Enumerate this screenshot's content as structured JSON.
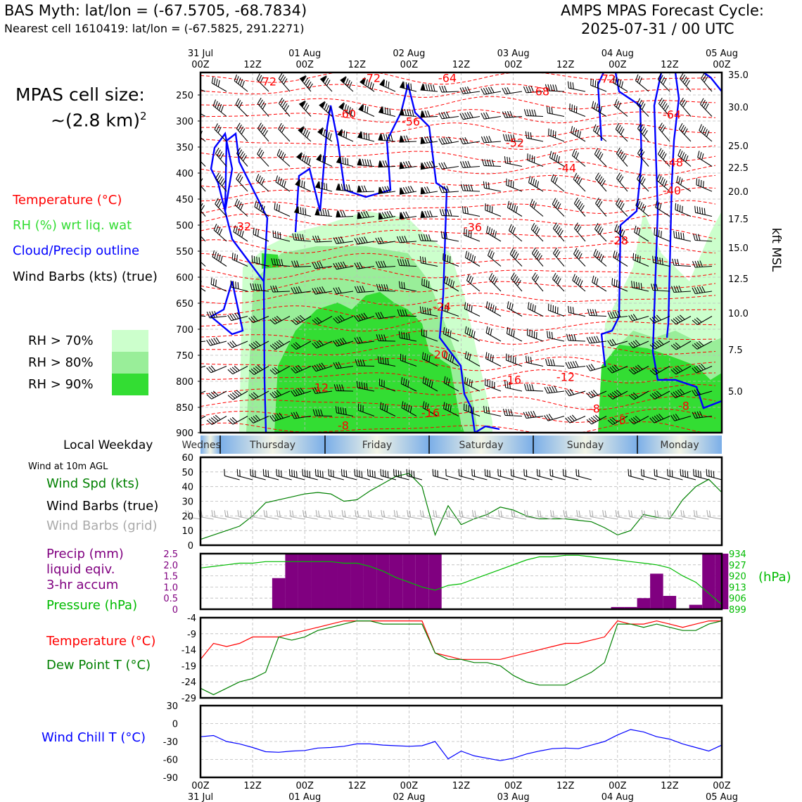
{
  "header": {
    "title_left": "BAS Myth: lat/lon = (-67.5705, -68.7834)",
    "subtitle_left": "Nearest cell 1610419: lat/lon = (-67.5825, 291.2271)",
    "title_right_1": "AMPS MPAS Forecast Cycle:",
    "title_right_2": "2025-07-31 / 00 UTC"
  },
  "cell_size": {
    "line1": "MPAS cell size:",
    "line2": "~(2.8 km)",
    "sup": "2"
  },
  "legend_top": {
    "temperature": "Temperature (°C)",
    "rh": "RH (%) wrt liq. wat",
    "cloud": "Cloud/Precip outline",
    "barbs": "Wind Barbs (kts) (true)",
    "rh70": "RH > 70%",
    "rh80": "RH > 80%",
    "rh90": "RH > 90%"
  },
  "colors": {
    "temp": "#ff0000",
    "rh_label": "#33dd33",
    "cloud": "#0000ff",
    "rh70": "#ccffcc",
    "rh80": "#99ee99",
    "rh90": "#33dd33",
    "precip": "#800080",
    "pressure": "#00bb00",
    "dewpoint": "#008000",
    "windchill": "#0000ff",
    "grey_barb": "#aaaaaa"
  },
  "time_axis": {
    "top_labels": [
      {
        "l1": "31 Jul",
        "l2": "00Z"
      },
      {
        "l1": "",
        "l2": "12Z"
      },
      {
        "l1": "01 Aug",
        "l2": "00Z"
      },
      {
        "l1": "",
        "l2": "12Z"
      },
      {
        "l1": "02 Aug",
        "l2": "00Z"
      },
      {
        "l1": "",
        "l2": "12Z"
      },
      {
        "l1": "03 Aug",
        "l2": "00Z"
      },
      {
        "l1": "",
        "l2": "12Z"
      },
      {
        "l1": "04 Aug",
        "l2": "00Z"
      },
      {
        "l1": "",
        "l2": "12Z"
      },
      {
        "l1": "05 Aug",
        "l2": "00Z"
      }
    ],
    "hours": [
      0,
      12,
      24,
      36,
      48,
      60,
      72,
      84,
      96,
      108,
      120
    ]
  },
  "weekday": {
    "label": "Local Weekday",
    "days": [
      "Wednesday",
      "Thursday",
      "Friday",
      "Saturday",
      "Sunday",
      "Monday"
    ]
  },
  "pressure_axis": {
    "levels": [
      "250",
      "300",
      "350",
      "400",
      "450",
      "500",
      "550",
      "600",
      "650",
      "700",
      "750",
      "800",
      "850",
      "900"
    ],
    "right_label": "kft MSL",
    "kft": [
      "35.0",
      "30.0",
      "25.0",
      "22.5",
      "20.0",
      "17.5",
      "15.0",
      "12.5",
      "10.0",
      "7.5",
      "5.0"
    ],
    "temp_labels": [
      "-72",
      "-72",
      "-64",
      "-68",
      "-72",
      "-60",
      "-56",
      "-52",
      "-64",
      "-44",
      "-48",
      "-40",
      "-36",
      "-32",
      "-28",
      "-24",
      "-20",
      "-16",
      "-12",
      "-12",
      "-16",
      "-8",
      "-8",
      "-8",
      "-8"
    ]
  },
  "wind_panel": {
    "title": "Wind at 10m AGL",
    "spd_label": "Wind Spd (kts)",
    "barbs_true": "Wind Barbs (true)",
    "barbs_grid": "Wind Barbs (grid)",
    "yticks": [
      "0",
      "10",
      "20",
      "30",
      "40",
      "50",
      "60"
    ]
  },
  "precip_panel": {
    "lab1": "Precip (mm)",
    "lab2": "liquid eqiv.",
    "lab3": "3-hr accum",
    "lab4": "Pressure (hPa)",
    "yticks": [
      "0",
      "0.5",
      "1.0",
      "1.5",
      "2.0",
      "2.5"
    ],
    "rticks": [
      "899",
      "906",
      "913",
      "920",
      "927",
      "934"
    ],
    "runit": "(hPa)"
  },
  "temp_panel": {
    "lab1": "Temperature (°C)",
    "lab2": "Dew Point T (°C)",
    "yticks": [
      "-29",
      "-24",
      "-19",
      "-14",
      "-9",
      "-4"
    ]
  },
  "chill_panel": {
    "lab": "Wind Chill T (°C)",
    "yticks": [
      "-90",
      "-60",
      "-30",
      "0",
      "30"
    ]
  },
  "bottom_axis": [
    {
      "l1": "00Z",
      "l2": "31 Jul"
    },
    {
      "l1": "12Z",
      "l2": ""
    },
    {
      "l1": "00Z",
      "l2": "01 Aug"
    },
    {
      "l1": "12Z",
      "l2": ""
    },
    {
      "l1": "00Z",
      "l2": "02 Aug"
    },
    {
      "l1": "12Z",
      "l2": ""
    },
    {
      "l1": "00Z",
      "l2": "03 Aug"
    },
    {
      "l1": "12Z",
      "l2": ""
    },
    {
      "l1": "00Z",
      "l2": "04 Aug"
    },
    {
      "l1": "12Z",
      "l2": ""
    },
    {
      "l1": "00Z",
      "l2": "05 Aug"
    }
  ],
  "chart_data": [
    {
      "type": "line",
      "title": "Wind at 10m AGL",
      "ylabel": "Wind Spd (kts)",
      "ylim": [
        0,
        60
      ],
      "x_hours": [
        0,
        3,
        6,
        9,
        12,
        15,
        18,
        21,
        24,
        27,
        30,
        33,
        36,
        39,
        42,
        45,
        48,
        51,
        54,
        57,
        60,
        63,
        66,
        69,
        72,
        75,
        78,
        81,
        84,
        87,
        90,
        93,
        96,
        99,
        102,
        105,
        108,
        111,
        114,
        117,
        120
      ],
      "series": [
        {
          "name": "Wind Spd (kts)",
          "values": [
            4,
            7,
            10,
            13,
            20,
            29,
            31,
            33,
            35,
            36,
            35,
            30,
            31,
            37,
            42,
            47,
            49,
            40,
            7,
            27,
            14,
            18,
            21,
            26,
            24,
            20,
            18,
            18,
            18,
            17,
            16,
            12,
            7,
            10,
            21,
            19,
            18,
            31,
            40,
            45,
            36
          ]
        }
      ]
    },
    {
      "type": "bar",
      "title": "Precip (mm) liquid eqiv. 3-hr accum",
      "ylim": [
        0,
        2.5
      ],
      "x_hours": [
        0,
        3,
        6,
        9,
        12,
        15,
        18,
        21,
        24,
        27,
        30,
        33,
        36,
        39,
        42,
        45,
        48,
        51,
        54,
        57,
        60,
        63,
        66,
        69,
        72,
        75,
        78,
        81,
        84,
        87,
        90,
        93,
        96,
        99,
        102,
        105,
        108,
        111,
        114,
        117,
        120
      ],
      "values": [
        0,
        0,
        0,
        0,
        0,
        0,
        1.4,
        2.5,
        2.5,
        2.5,
        2.5,
        2.5,
        2.5,
        2.5,
        2.5,
        2.5,
        2.5,
        2.5,
        2.5,
        0,
        0,
        0,
        0,
        0,
        0,
        0,
        0,
        0,
        0,
        0,
        0,
        0,
        0.1,
        0.1,
        0.5,
        1.6,
        0.6,
        0,
        0.2,
        2.5,
        2.5
      ],
      "pressure": {
        "name": "Pressure (hPa)",
        "ylim": [
          899,
          934
        ],
        "values": [
          925,
          926,
          927,
          928,
          928,
          929,
          929,
          929,
          929,
          929,
          929,
          928,
          928,
          926,
          923,
          919,
          916,
          913,
          911,
          914,
          915,
          918,
          921,
          924,
          927,
          930,
          932,
          932,
          933,
          933,
          932,
          931,
          930,
          929,
          928,
          927,
          925,
          920,
          916,
          909,
          902
        ]
      }
    },
    {
      "type": "line",
      "title": "Temperature / Dew Point",
      "ylim": [
        -29,
        -4
      ],
      "x_hours": [
        0,
        3,
        6,
        9,
        12,
        15,
        18,
        21,
        24,
        27,
        30,
        33,
        36,
        39,
        42,
        45,
        48,
        51,
        54,
        57,
        60,
        63,
        66,
        69,
        72,
        75,
        78,
        81,
        84,
        87,
        90,
        93,
        96,
        99,
        102,
        105,
        108,
        111,
        114,
        117,
        120
      ],
      "series": [
        {
          "name": "Temperature (°C)",
          "values": [
            -17,
            -12,
            -13,
            -12,
            -10,
            -10,
            -10,
            -9,
            -8,
            -7,
            -6,
            -5,
            -5,
            -5,
            -5,
            -5,
            -5,
            -5,
            -15,
            -16,
            -17,
            -17,
            -17,
            -17,
            -16,
            -15,
            -14,
            -13,
            -12,
            -12,
            -11,
            -10,
            -5,
            -6,
            -6,
            -5,
            -6,
            -7,
            -6,
            -5,
            -5
          ]
        },
        {
          "name": "Dew Point T (°C)",
          "values": [
            -26,
            -28,
            -26,
            -24,
            -23,
            -21,
            -10,
            -11,
            -10,
            -8,
            -7,
            -6,
            -5,
            -5,
            -6,
            -6,
            -6,
            -6,
            -15,
            -17,
            -17,
            -18,
            -18,
            -19,
            -22,
            -24,
            -25,
            -25,
            -25,
            -23,
            -21,
            -18,
            -6,
            -6,
            -7,
            -6,
            -7,
            -8,
            -8,
            -6,
            -5
          ]
        }
      ]
    },
    {
      "type": "line",
      "title": "Wind Chill T (°C)",
      "ylim": [
        -90,
        30
      ],
      "x_hours": [
        0,
        3,
        6,
        9,
        12,
        15,
        18,
        21,
        24,
        27,
        30,
        33,
        36,
        39,
        42,
        45,
        48,
        51,
        54,
        57,
        60,
        63,
        66,
        69,
        72,
        75,
        78,
        81,
        84,
        87,
        90,
        93,
        96,
        99,
        102,
        105,
        108,
        111,
        114,
        117,
        120
      ],
      "series": [
        {
          "name": "Wind Chill T (°C)",
          "values": [
            -22,
            -20,
            -30,
            -34,
            -40,
            -47,
            -48,
            -46,
            -45,
            -41,
            -40,
            -38,
            -34,
            -34,
            -36,
            -37,
            -38,
            -37,
            -30,
            -59,
            -46,
            -54,
            -58,
            -62,
            -58,
            -51,
            -46,
            -42,
            -41,
            -42,
            -36,
            -30,
            -19,
            -10,
            -14,
            -22,
            -26,
            -34,
            -40,
            -46,
            -36
          ]
        }
      ]
    }
  ]
}
